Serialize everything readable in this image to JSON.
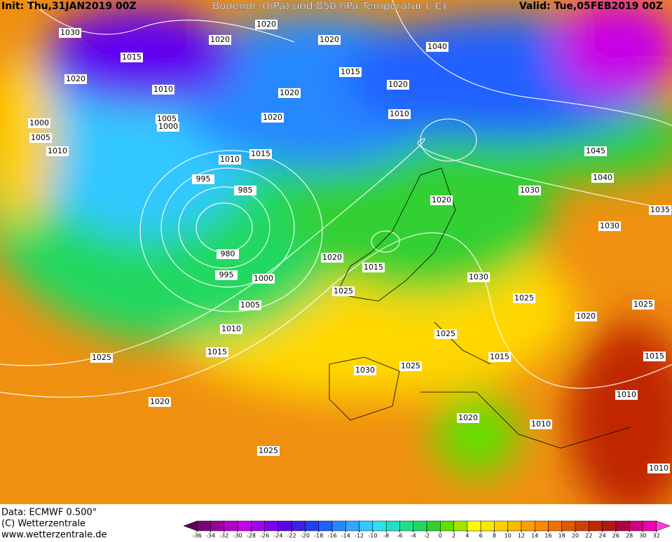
{
  "header": {
    "init": "Init: Thu,31JAN2019 00Z",
    "title": "Bodendr. (hPa) und 850 hPa Temperatur (°C)",
    "valid": "Valid: Tue,05FEB2019 00Z"
  },
  "footer": {
    "data": "Data: ECMWF  0.500°",
    "copyright": "(C) Wetterzentrale",
    "url": "www.wetterzentrale.de"
  },
  "colorbar": {
    "ticks": [
      -36,
      -34,
      -32,
      -30,
      -28,
      -26,
      -24,
      -22,
      -20,
      -18,
      -16,
      -14,
      -12,
      -10,
      -8,
      -6,
      -4,
      -2,
      0,
      2,
      4,
      6,
      8,
      10,
      12,
      14,
      16,
      18,
      20,
      22,
      24,
      26,
      28,
      30,
      32
    ],
    "colors": [
      "#5a0050",
      "#7a0078",
      "#9a009a",
      "#b400c8",
      "#c800e6",
      "#a000f0",
      "#8000f0",
      "#6000f0",
      "#4020e0",
      "#2040f0",
      "#2060ff",
      "#2888ff",
      "#30a8ff",
      "#30c8ff",
      "#30e0f0",
      "#20e0c0",
      "#20e090",
      "#20d860",
      "#30d030",
      "#60e000",
      "#a0e800",
      "#ffff00",
      "#ffe800",
      "#ffd000",
      "#ffb800",
      "#ffa000",
      "#ff8800",
      "#f07000",
      "#e05800",
      "#d04000",
      "#c02800",
      "#b01818",
      "#b00040",
      "#d00080",
      "#f000b0",
      "#ff40e0"
    ]
  },
  "isobar_labels": [
    "1030",
    "1020",
    "1020",
    "1020",
    "1040",
    "1015",
    "1015",
    "1020",
    "1020",
    "1010",
    "1020",
    "1010",
    "1020",
    "1005",
    "1000",
    "1000",
    "1005",
    "1010",
    "1015",
    "1010",
    "1045",
    "995",
    "985",
    "1040",
    "1030",
    "1020",
    "1035",
    "1030",
    "980",
    "1020",
    "1015",
    "995",
    "1000",
    "1030",
    "1025",
    "1025",
    "1025",
    "1005",
    "1020",
    "1010",
    "1025",
    "1015",
    "1025",
    "1015",
    "1015",
    "1030",
    "1025",
    "1010",
    "1020",
    "1020",
    "1010",
    "1025",
    "1010"
  ]
}
